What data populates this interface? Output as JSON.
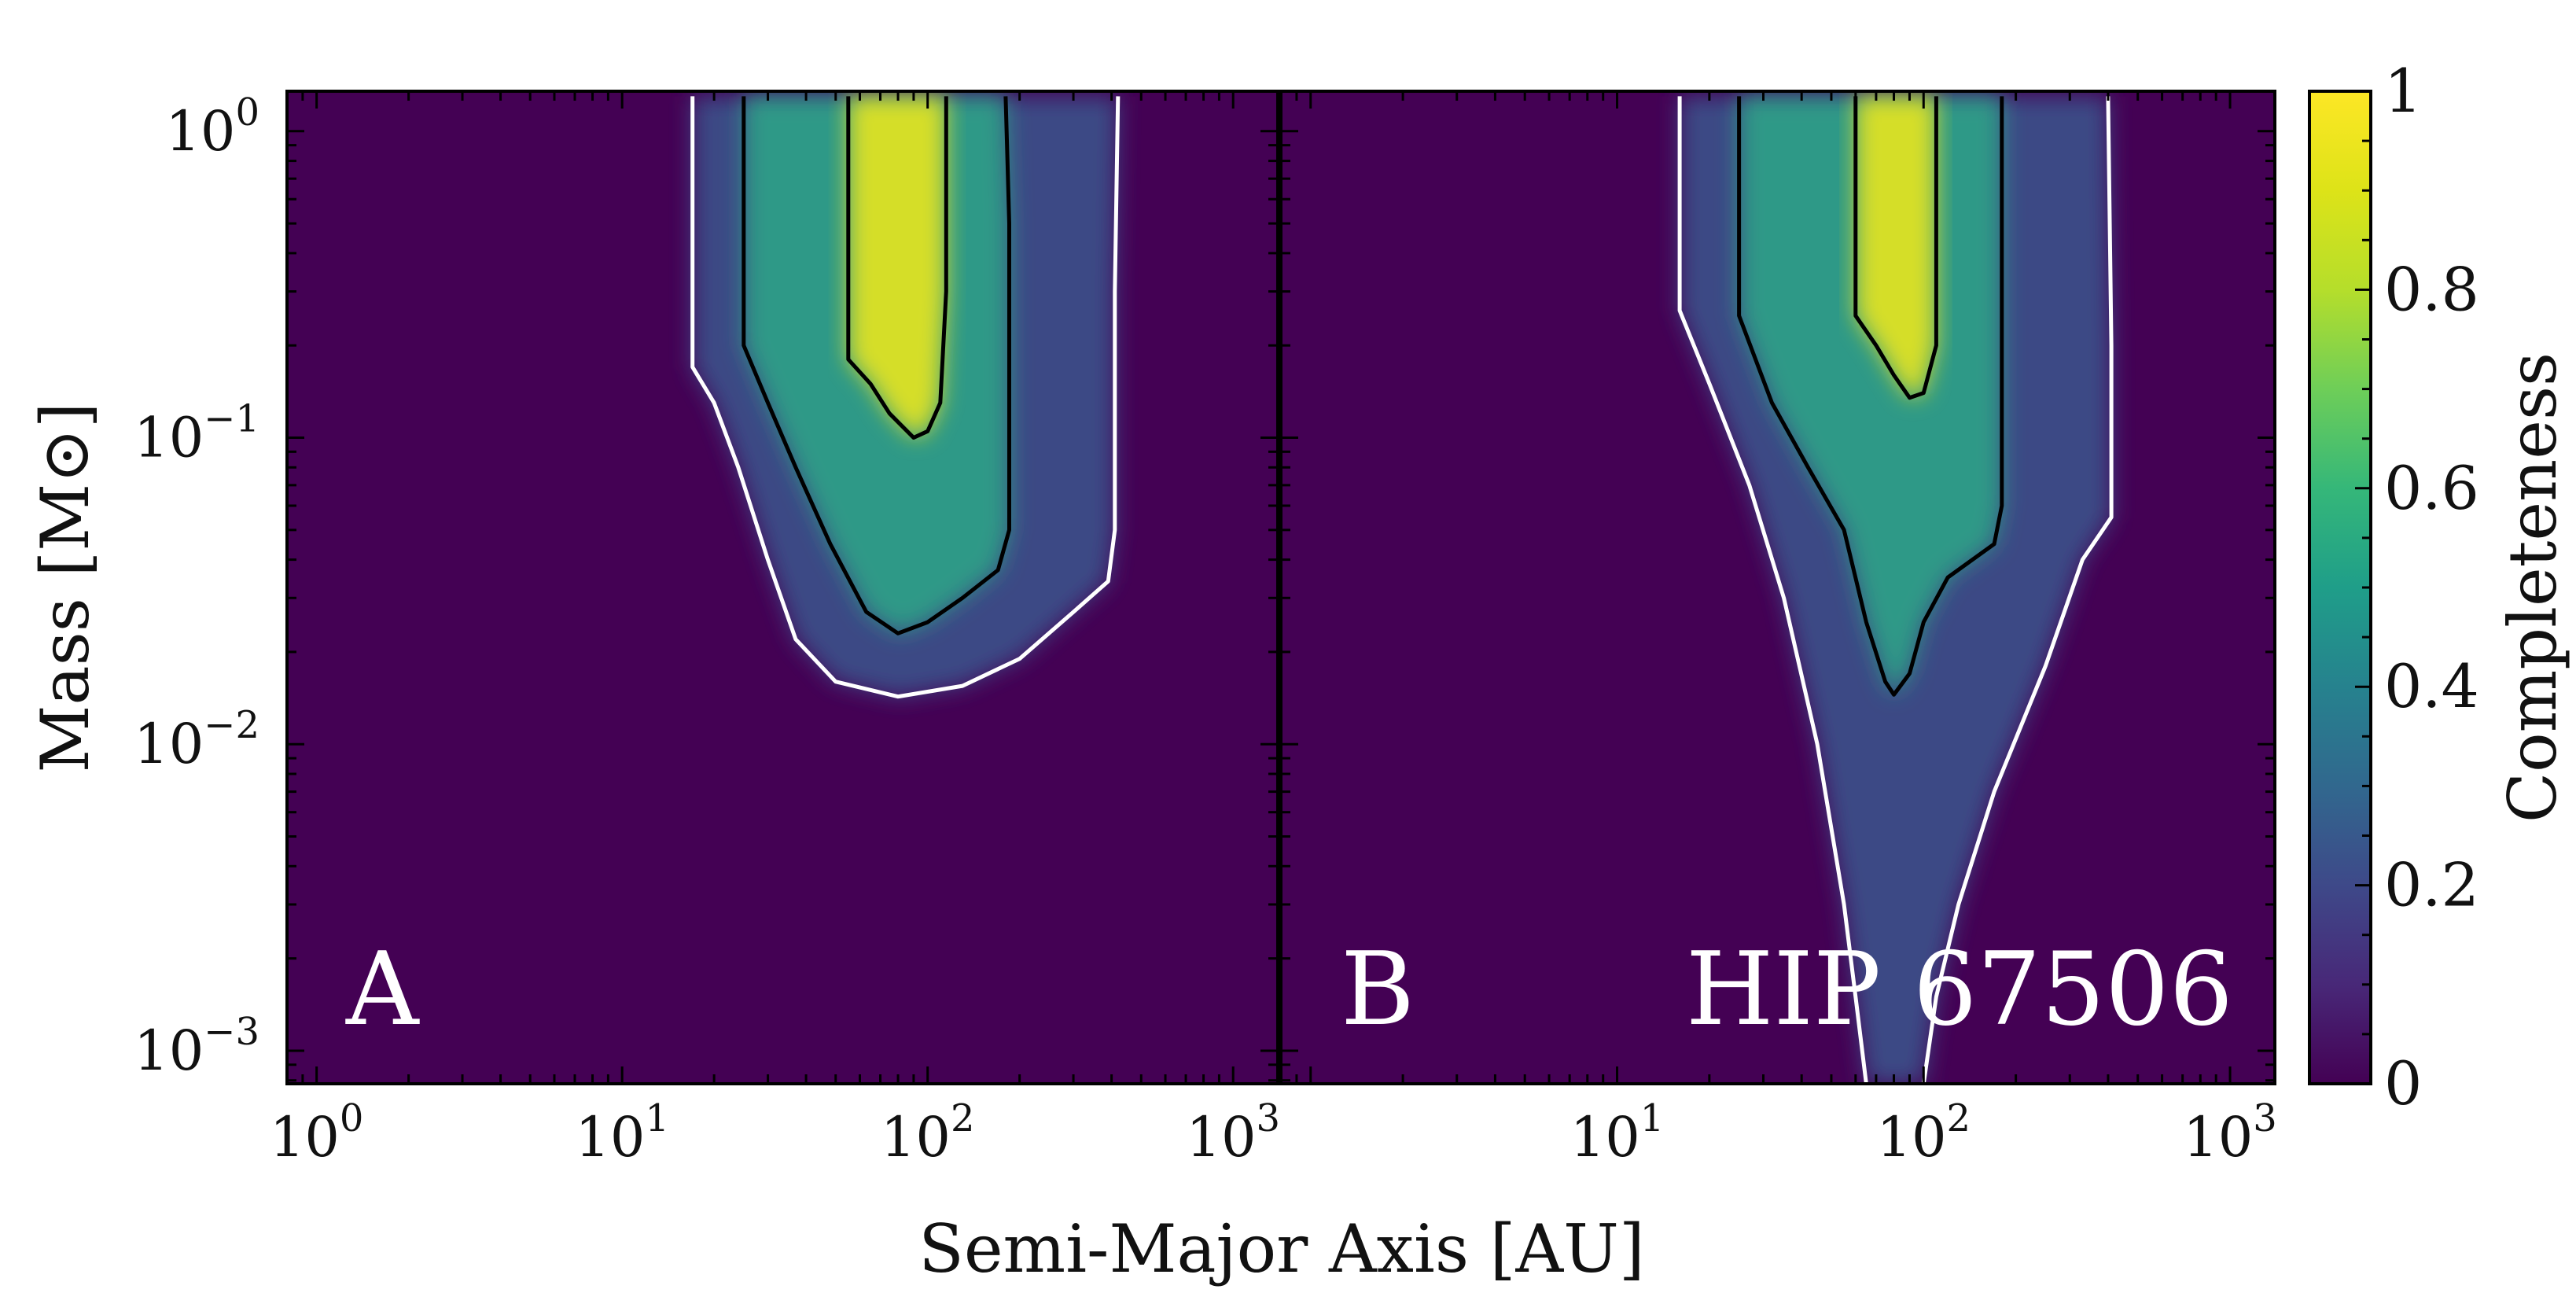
{
  "chart_data": {
    "type": "heatmap",
    "xlabel": "Semi-Major Axis [AU]",
    "ylabel": "Mass [M⊙]",
    "xscale": "log",
    "yscale": "log",
    "xlim": [
      0.8,
      1400
    ],
    "ylim": [
      0.00078,
      1.35
    ],
    "x_ticks": [
      {
        "value": 1,
        "base": "10",
        "exp": "0"
      },
      {
        "value": 10,
        "base": "10",
        "exp": "1"
      },
      {
        "value": 100,
        "base": "10",
        "exp": "2"
      },
      {
        "value": 1000,
        "base": "10",
        "exp": "3"
      }
    ],
    "y_ticks": [
      {
        "value": 1,
        "base": "10",
        "exp": "0"
      },
      {
        "value": 0.1,
        "base": "10",
        "exp": "−1"
      },
      {
        "value": 0.01,
        "base": "10",
        "exp": "−2"
      },
      {
        "value": 0.001,
        "base": "10",
        "exp": "−3"
      }
    ],
    "colorbar": {
      "label": "Completeness",
      "range": [
        0,
        1
      ],
      "ticks": [
        {
          "value": 0,
          "label": "0"
        },
        {
          "value": 0.2,
          "label": "0.2"
        },
        {
          "value": 0.4,
          "label": "0.4"
        },
        {
          "value": 0.6,
          "label": "0.6"
        },
        {
          "value": 0.8,
          "label": "0.8"
        },
        {
          "value": 1,
          "label": "1"
        }
      ],
      "colormap": "viridis"
    },
    "contour_levels": [
      {
        "level": 0.1,
        "color": "#ffffff"
      },
      {
        "level": 0.5,
        "color": "#000000"
      },
      {
        "level": 0.9,
        "color": "#000000"
      }
    ],
    "panels": [
      {
        "panel_label": "A",
        "target_label": "",
        "show_y_tick_labels": true,
        "show_x_tick_labels": true,
        "contours": [
          {
            "level": 0.1,
            "points": [
              [
                17,
                1.3
              ],
              [
                17,
                0.17
              ],
              [
                20,
                0.13
              ],
              [
                24,
                0.08
              ],
              [
                30,
                0.04
              ],
              [
                37,
                0.022
              ],
              [
                50,
                0.016
              ],
              [
                80,
                0.0143
              ],
              [
                130,
                0.0155
              ],
              [
                200,
                0.019
              ],
              [
                300,
                0.027
              ],
              [
                390,
                0.034
              ],
              [
                410,
                0.05
              ],
              [
                410,
                0.3
              ],
              [
                420,
                1.3
              ]
            ]
          },
          {
            "level": 0.5,
            "points": [
              [
                25,
                1.3
              ],
              [
                25,
                0.2
              ],
              [
                30,
                0.13
              ],
              [
                37,
                0.08
              ],
              [
                48,
                0.045
              ],
              [
                63,
                0.027
              ],
              [
                80,
                0.023
              ],
              [
                100,
                0.025
              ],
              [
                130,
                0.03
              ],
              [
                170,
                0.037
              ],
              [
                185,
                0.05
              ],
              [
                185,
                0.5
              ],
              [
                180,
                1.3
              ]
            ]
          },
          {
            "level": 0.9,
            "points": [
              [
                55,
                1.3
              ],
              [
                55,
                0.18
              ],
              [
                65,
                0.15
              ],
              [
                75,
                0.12
              ],
              [
                90,
                0.1
              ],
              [
                100,
                0.105
              ],
              [
                110,
                0.13
              ],
              [
                115,
                0.3
              ],
              [
                115,
                1.3
              ]
            ]
          }
        ]
      },
      {
        "panel_label": "B",
        "target_label": "HIP 67506",
        "show_y_tick_labels": false,
        "show_x_tick_labels": true,
        "contours": [
          {
            "level": 0.1,
            "points": [
              [
                16,
                1.3
              ],
              [
                16,
                0.26
              ],
              [
                20,
                0.15
              ],
              [
                27,
                0.07
              ],
              [
                35,
                0.03
              ],
              [
                45,
                0.01
              ],
              [
                55,
                0.003
              ],
              [
                60,
                0.0015
              ],
              [
                65,
                0.00078
              ]
            ]
          },
          {
            "level": 0.1,
            "points": [
              [
                100,
                0.00078
              ],
              [
                110,
                0.0015
              ],
              [
                130,
                0.003
              ],
              [
                170,
                0.007
              ],
              [
                250,
                0.018
              ],
              [
                330,
                0.04
              ],
              [
                410,
                0.055
              ],
              [
                410,
                0.2
              ],
              [
                400,
                1.3
              ]
            ]
          },
          {
            "level": 0.5,
            "points": [
              [
                25,
                1.3
              ],
              [
                25,
                0.25
              ],
              [
                32,
                0.13
              ],
              [
                42,
                0.08
              ],
              [
                55,
                0.05
              ],
              [
                65,
                0.025
              ],
              [
                75,
                0.016
              ],
              [
                80,
                0.0145
              ],
              [
                90,
                0.017
              ],
              [
                100,
                0.025
              ],
              [
                120,
                0.035
              ],
              [
                170,
                0.045
              ],
              [
                180,
                0.06
              ],
              [
                180,
                0.5
              ],
              [
                180,
                1.3
              ]
            ]
          },
          {
            "level": 0.9,
            "points": [
              [
                60,
                1.3
              ],
              [
                60,
                0.25
              ],
              [
                70,
                0.2
              ],
              [
                80,
                0.16
              ],
              [
                90,
                0.135
              ],
              [
                100,
                0.14
              ],
              [
                110,
                0.2
              ],
              [
                110,
                1.3
              ]
            ]
          }
        ]
      }
    ]
  }
}
